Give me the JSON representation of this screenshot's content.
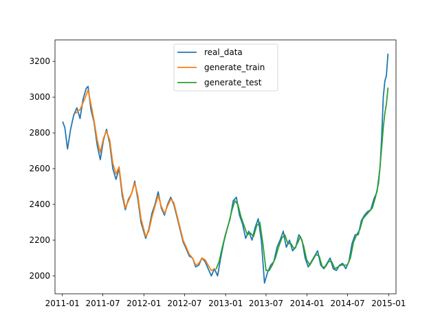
{
  "chart_data": {
    "type": "line",
    "title": "",
    "xlabel": "",
    "ylabel": "",
    "xlim": [
      "2010-11-29",
      "2015-02-03"
    ],
    "ylim": [
      1900,
      3320
    ],
    "y_ticks": [
      2000,
      2200,
      2400,
      2600,
      2800,
      3000,
      3200
    ],
    "y_tick_labels": [
      "2000",
      "2200",
      "2400",
      "2600",
      "2800",
      "3000",
      "3200"
    ],
    "x_ticks": [
      "2011-01-01",
      "2011-07-01",
      "2012-01-01",
      "2012-07-01",
      "2013-01-01",
      "2013-07-01",
      "2014-01-01",
      "2014-07-01",
      "2015-01-01"
    ],
    "x_tick_labels": [
      "2011-01",
      "2011-07",
      "2012-01",
      "2012-07",
      "2013-01",
      "2013-07",
      "2014-01",
      "2014-07",
      "2015-01"
    ],
    "grid": false,
    "legend_position": "top-center",
    "series": [
      {
        "name": "real_data",
        "color": "#1f77b4",
        "points": [
          [
            "2011-01-03",
            2860
          ],
          [
            "2011-01-12",
            2830
          ],
          [
            "2011-01-24",
            2710
          ],
          [
            "2011-02-07",
            2820
          ],
          [
            "2011-02-21",
            2900
          ],
          [
            "2011-03-07",
            2940
          ],
          [
            "2011-03-21",
            2880
          ],
          [
            "2011-04-04",
            2990
          ],
          [
            "2011-04-18",
            3050
          ],
          [
            "2011-04-26",
            3060
          ],
          [
            "2011-05-09",
            2930
          ],
          [
            "2011-05-23",
            2860
          ],
          [
            "2011-06-06",
            2730
          ],
          [
            "2011-06-20",
            2650
          ],
          [
            "2011-07-04",
            2760
          ],
          [
            "2011-07-18",
            2820
          ],
          [
            "2011-08-01",
            2740
          ],
          [
            "2011-08-15",
            2600
          ],
          [
            "2011-08-29",
            2540
          ],
          [
            "2011-09-12",
            2600
          ],
          [
            "2011-09-26",
            2450
          ],
          [
            "2011-10-10",
            2370
          ],
          [
            "2011-10-24",
            2430
          ],
          [
            "2011-11-07",
            2460
          ],
          [
            "2011-11-21",
            2530
          ],
          [
            "2011-12-05",
            2430
          ],
          [
            "2011-12-19",
            2300
          ],
          [
            "2012-01-09",
            2210
          ],
          [
            "2012-01-23",
            2260
          ],
          [
            "2012-02-06",
            2350
          ],
          [
            "2012-02-20",
            2400
          ],
          [
            "2012-03-05",
            2470
          ],
          [
            "2012-03-19",
            2380
          ],
          [
            "2012-04-02",
            2340
          ],
          [
            "2012-04-16",
            2400
          ],
          [
            "2012-04-30",
            2440
          ],
          [
            "2012-05-14",
            2400
          ],
          [
            "2012-05-28",
            2330
          ],
          [
            "2012-06-11",
            2260
          ],
          [
            "2012-06-25",
            2190
          ],
          [
            "2012-07-09",
            2150
          ],
          [
            "2012-07-23",
            2110
          ],
          [
            "2012-08-06",
            2100
          ],
          [
            "2012-08-20",
            2050
          ],
          [
            "2012-09-03",
            2060
          ],
          [
            "2012-09-17",
            2100
          ],
          [
            "2012-10-01",
            2080
          ],
          [
            "2012-10-15",
            2040
          ],
          [
            "2012-10-29",
            2000
          ],
          [
            "2012-11-12",
            2040
          ],
          [
            "2012-11-26",
            2000
          ],
          [
            "2012-12-10",
            2100
          ],
          [
            "2012-12-24",
            2190
          ],
          [
            "2013-01-07",
            2260
          ],
          [
            "2013-01-21",
            2320
          ],
          [
            "2013-02-04",
            2420
          ],
          [
            "2013-02-18",
            2440
          ],
          [
            "2013-03-04",
            2340
          ],
          [
            "2013-03-18",
            2290
          ],
          [
            "2013-04-01",
            2210
          ],
          [
            "2013-04-15",
            2250
          ],
          [
            "2013-04-29",
            2200
          ],
          [
            "2013-05-13",
            2270
          ],
          [
            "2013-05-27",
            2320
          ],
          [
            "2013-06-10",
            2200
          ],
          [
            "2013-06-24",
            1960
          ],
          [
            "2013-07-08",
            2020
          ],
          [
            "2013-07-22",
            2060
          ],
          [
            "2013-08-05",
            2080
          ],
          [
            "2013-08-19",
            2160
          ],
          [
            "2013-09-02",
            2200
          ],
          [
            "2013-09-16",
            2250
          ],
          [
            "2013-09-30",
            2160
          ],
          [
            "2013-10-14",
            2200
          ],
          [
            "2013-10-28",
            2140
          ],
          [
            "2013-11-11",
            2160
          ],
          [
            "2013-11-25",
            2230
          ],
          [
            "2013-12-09",
            2200
          ],
          [
            "2013-12-23",
            2100
          ],
          [
            "2014-01-06",
            2050
          ],
          [
            "2014-01-20",
            2080
          ],
          [
            "2014-02-03",
            2110
          ],
          [
            "2014-02-17",
            2140
          ],
          [
            "2014-03-03",
            2060
          ],
          [
            "2014-03-17",
            2040
          ],
          [
            "2014-03-31",
            2070
          ],
          [
            "2014-04-14",
            2100
          ],
          [
            "2014-04-28",
            2040
          ],
          [
            "2014-05-12",
            2030
          ],
          [
            "2014-05-26",
            2060
          ],
          [
            "2014-06-09",
            2070
          ],
          [
            "2014-06-23",
            2040
          ],
          [
            "2014-07-07",
            2080
          ],
          [
            "2014-07-21",
            2180
          ],
          [
            "2014-08-04",
            2230
          ],
          [
            "2014-08-18",
            2230
          ],
          [
            "2014-09-01",
            2310
          ],
          [
            "2014-09-15",
            2340
          ],
          [
            "2014-09-29",
            2360
          ],
          [
            "2014-10-13",
            2370
          ],
          [
            "2014-10-27",
            2430
          ],
          [
            "2014-11-10",
            2470
          ],
          [
            "2014-11-24",
            2610
          ],
          [
            "2014-12-01",
            2780
          ],
          [
            "2014-12-08",
            3000
          ],
          [
            "2014-12-15",
            3090
          ],
          [
            "2014-12-22",
            3120
          ],
          [
            "2014-12-29",
            3240
          ]
        ]
      },
      {
        "name": "generate_train",
        "color": "#ff7f0e",
        "points": [
          [
            "2011-03-01",
            2910
          ],
          [
            "2011-03-21",
            2930
          ],
          [
            "2011-04-11",
            2990
          ],
          [
            "2011-04-26",
            3040
          ],
          [
            "2011-05-09",
            2960
          ],
          [
            "2011-05-23",
            2870
          ],
          [
            "2011-06-06",
            2760
          ],
          [
            "2011-06-20",
            2690
          ],
          [
            "2011-07-04",
            2770
          ],
          [
            "2011-07-18",
            2810
          ],
          [
            "2011-08-01",
            2760
          ],
          [
            "2011-08-15",
            2630
          ],
          [
            "2011-08-29",
            2570
          ],
          [
            "2011-09-12",
            2610
          ],
          [
            "2011-09-26",
            2470
          ],
          [
            "2011-10-10",
            2380
          ],
          [
            "2011-10-24",
            2420
          ],
          [
            "2011-11-07",
            2460
          ],
          [
            "2011-11-21",
            2520
          ],
          [
            "2011-12-05",
            2450
          ],
          [
            "2011-12-19",
            2320
          ],
          [
            "2012-01-09",
            2220
          ],
          [
            "2012-01-23",
            2250
          ],
          [
            "2012-02-06",
            2330
          ],
          [
            "2012-02-20",
            2390
          ],
          [
            "2012-03-05",
            2450
          ],
          [
            "2012-03-19",
            2390
          ],
          [
            "2012-04-02",
            2350
          ],
          [
            "2012-04-16",
            2390
          ],
          [
            "2012-04-30",
            2430
          ],
          [
            "2012-05-14",
            2410
          ],
          [
            "2012-05-28",
            2340
          ],
          [
            "2012-06-11",
            2270
          ],
          [
            "2012-06-25",
            2200
          ],
          [
            "2012-07-09",
            2160
          ],
          [
            "2012-07-23",
            2120
          ],
          [
            "2012-08-06",
            2100
          ],
          [
            "2012-08-20",
            2060
          ],
          [
            "2012-09-03",
            2070
          ],
          [
            "2012-09-17",
            2100
          ],
          [
            "2012-10-01",
            2090
          ],
          [
            "2012-10-15",
            2060
          ],
          [
            "2012-10-29",
            2030
          ],
          [
            "2012-11-12",
            2040
          ]
        ]
      },
      {
        "name": "generate_test",
        "color": "#2ca02c",
        "points": [
          [
            "2012-11-20",
            2040
          ],
          [
            "2012-12-03",
            2080
          ],
          [
            "2012-12-17",
            2160
          ],
          [
            "2012-12-31",
            2230
          ],
          [
            "2013-01-14",
            2290
          ],
          [
            "2013-01-28",
            2360
          ],
          [
            "2013-02-11",
            2420
          ],
          [
            "2013-02-25",
            2400
          ],
          [
            "2013-03-11",
            2330
          ],
          [
            "2013-03-25",
            2280
          ],
          [
            "2013-04-08",
            2230
          ],
          [
            "2013-04-22",
            2240
          ],
          [
            "2013-05-06",
            2220
          ],
          [
            "2013-05-20",
            2280
          ],
          [
            "2013-06-03",
            2300
          ],
          [
            "2013-06-17",
            2180
          ],
          [
            "2013-07-01",
            2030
          ],
          [
            "2013-07-15",
            2030
          ],
          [
            "2013-07-29",
            2060
          ],
          [
            "2013-08-12",
            2100
          ],
          [
            "2013-08-26",
            2160
          ],
          [
            "2013-09-09",
            2210
          ],
          [
            "2013-09-23",
            2230
          ],
          [
            "2013-10-07",
            2180
          ],
          [
            "2013-10-21",
            2180
          ],
          [
            "2013-11-04",
            2150
          ],
          [
            "2013-11-18",
            2180
          ],
          [
            "2013-12-02",
            2220
          ],
          [
            "2013-12-16",
            2170
          ],
          [
            "2013-12-30",
            2090
          ],
          [
            "2014-01-13",
            2060
          ],
          [
            "2014-01-27",
            2090
          ],
          [
            "2014-02-10",
            2120
          ],
          [
            "2014-02-24",
            2110
          ],
          [
            "2014-03-10",
            2050
          ],
          [
            "2014-03-24",
            2050
          ],
          [
            "2014-04-07",
            2080
          ],
          [
            "2014-04-21",
            2080
          ],
          [
            "2014-05-05",
            2040
          ],
          [
            "2014-05-19",
            2050
          ],
          [
            "2014-06-02",
            2060
          ],
          [
            "2014-06-16",
            2060
          ],
          [
            "2014-06-30",
            2060
          ],
          [
            "2014-07-14",
            2100
          ],
          [
            "2014-07-28",
            2190
          ],
          [
            "2014-08-11",
            2230
          ],
          [
            "2014-08-25",
            2260
          ],
          [
            "2014-09-08",
            2320
          ],
          [
            "2014-09-22",
            2340
          ],
          [
            "2014-10-06",
            2360
          ],
          [
            "2014-10-20",
            2380
          ],
          [
            "2014-11-03",
            2440
          ],
          [
            "2014-11-17",
            2520
          ],
          [
            "2014-12-01",
            2720
          ],
          [
            "2014-12-08",
            2830
          ],
          [
            "2014-12-15",
            2910
          ],
          [
            "2014-12-22",
            2960
          ],
          [
            "2014-12-29",
            3050
          ]
        ]
      }
    ]
  }
}
